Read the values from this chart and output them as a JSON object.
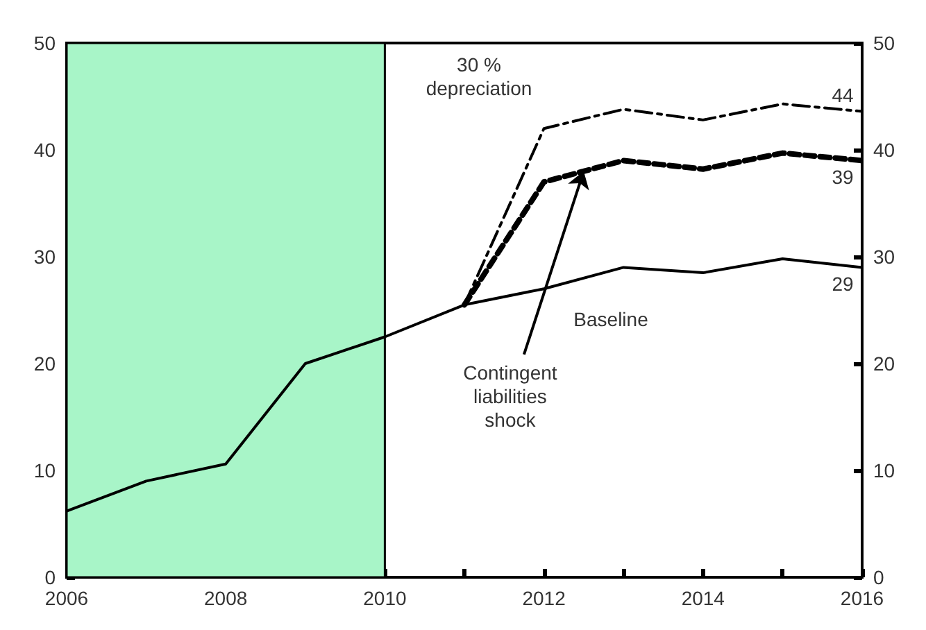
{
  "chart_data": {
    "type": "line",
    "x": [
      2006,
      2007,
      2008,
      2009,
      2010,
      2011,
      2012,
      2013,
      2014,
      2015,
      2016
    ],
    "series": [
      {
        "color": "#000000",
        "line_style": "solid",
        "values": [
          6.2,
          9,
          10.6,
          20,
          22.5,
          25.5,
          27,
          29,
          28.5,
          29.8,
          29
        ],
        "value_labels": [
          null,
          null,
          null,
          null,
          null,
          null,
          null,
          null,
          null,
          null,
          "29"
        ]
      },
      {
        "color": "#000000",
        "line_style": "dashed",
        "values": [
          null,
          null,
          null,
          null,
          null,
          25.5,
          37,
          39,
          38.2,
          39.7,
          39
        ],
        "value_labels": [
          null,
          null,
          null,
          null,
          null,
          null,
          null,
          null,
          null,
          null,
          "39"
        ]
      },
      {
        "color": "#000000",
        "line_style": "dashdot",
        "values": [
          null,
          null,
          null,
          null,
          null,
          25.5,
          42,
          43.8,
          42.8,
          44.3,
          43.6
        ],
        "value_labels": [
          null,
          null,
          null,
          null,
          null,
          null,
          null,
          null,
          null,
          null,
          "44"
        ]
      }
    ],
    "xlim": [
      2006,
      2016
    ],
    "xticks": [
      2006,
      {
        "value": 2007,
        "label": null
      },
      2008,
      {
        "value": 2009,
        "label": null
      },
      2010,
      {
        "value": 2011,
        "label": null
      },
      2012,
      {
        "value": 2013,
        "label": null
      },
      2014,
      {
        "value": 2015,
        "label": null
      },
      2016
    ],
    "ylim": [
      0,
      50
    ],
    "yticks": [
      0,
      10,
      20,
      30,
      40,
      50
    ],
    "y2lim": [
      0,
      50
    ],
    "y2ticks": [
      0,
      10,
      20,
      30,
      40,
      50
    ],
    "bands": [
      {
        "axis": "x",
        "from": 2006,
        "to": 2010,
        "color": "#a8f5c8"
      }
    ],
    "annotations": [
      "30 %\ndepreciation",
      {
        "text": "Contingent\nliabilities\nshock",
        "x": 2012.5,
        "y": 38
      },
      "Baseline"
    ],
    "grid": false,
    "marker": "none"
  }
}
